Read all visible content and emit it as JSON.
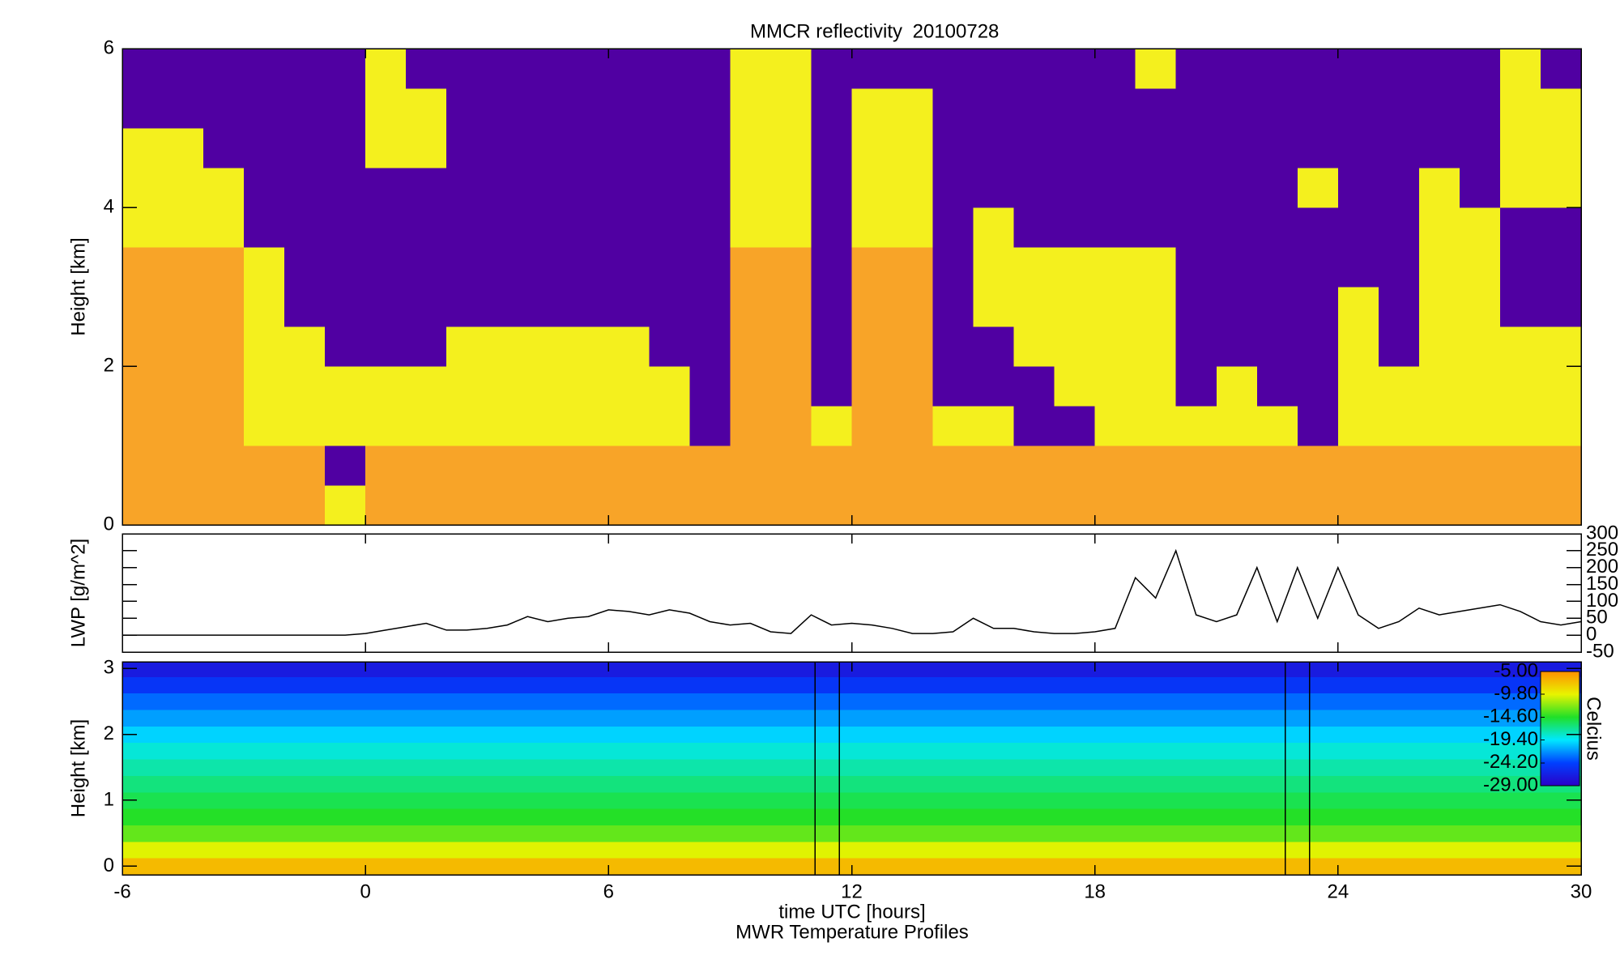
{
  "chart_data": [
    {
      "type": "heatmap",
      "title": "MMCR reflectivity",
      "date": "20100728",
      "ylabel": "Height [km]",
      "ylim": [
        0,
        6
      ],
      "yticks": [
        0,
        2,
        4,
        6
      ],
      "xbins": [
        -6,
        -5,
        -4,
        -3,
        -2,
        -1,
        0,
        1,
        2,
        3,
        4,
        5,
        6,
        7,
        8,
        9,
        10,
        11,
        12,
        13,
        14,
        15,
        16,
        17,
        18,
        19,
        20,
        21,
        22,
        23,
        24,
        25,
        26,
        27,
        28,
        29,
        30
      ],
      "ybins": [
        0,
        0.5,
        1,
        1.5,
        2,
        2.5,
        3,
        3.5,
        4,
        4.5,
        5,
        5.5,
        6
      ],
      "colors": [
        "#5000a2",
        "#f4f01e",
        "#f8a428"
      ],
      "values": [
        [
          2,
          2,
          2,
          2,
          2,
          1,
          2,
          2,
          2,
          2,
          2,
          2,
          2,
          2,
          2,
          2,
          2,
          2,
          2,
          2,
          2,
          2,
          2,
          2,
          2,
          2,
          2,
          2,
          2,
          2,
          2,
          2,
          2,
          2,
          2,
          2
        ],
        [
          2,
          2,
          2,
          2,
          2,
          0,
          2,
          2,
          2,
          2,
          2,
          2,
          2,
          2,
          2,
          2,
          2,
          2,
          2,
          2,
          2,
          2,
          2,
          2,
          2,
          2,
          2,
          2,
          2,
          2,
          2,
          2,
          2,
          2,
          2,
          2
        ],
        [
          2,
          2,
          2,
          1,
          1,
          1,
          1,
          1,
          1,
          1,
          1,
          1,
          1,
          1,
          0,
          2,
          2,
          1,
          2,
          2,
          1,
          1,
          0,
          0,
          1,
          1,
          1,
          1,
          1,
          0,
          1,
          1,
          1,
          1,
          1,
          1
        ],
        [
          2,
          2,
          2,
          1,
          1,
          1,
          1,
          1,
          1,
          1,
          1,
          1,
          1,
          1,
          0,
          2,
          2,
          0,
          2,
          2,
          0,
          0,
          0,
          1,
          1,
          1,
          0,
          1,
          0,
          0,
          1,
          1,
          1,
          1,
          1,
          1
        ],
        [
          2,
          2,
          2,
          1,
          1,
          0,
          0,
          0,
          1,
          1,
          1,
          1,
          1,
          0,
          0,
          2,
          2,
          0,
          2,
          2,
          0,
          0,
          1,
          1,
          1,
          1,
          0,
          0,
          0,
          0,
          1,
          0,
          1,
          1,
          1,
          1
        ],
        [
          2,
          2,
          2,
          1,
          0,
          0,
          0,
          0,
          0,
          0,
          0,
          0,
          0,
          0,
          0,
          2,
          2,
          0,
          2,
          2,
          0,
          1,
          1,
          1,
          1,
          1,
          0,
          0,
          0,
          0,
          1,
          0,
          1,
          1,
          0,
          0
        ],
        [
          2,
          2,
          2,
          1,
          0,
          0,
          0,
          0,
          0,
          0,
          0,
          0,
          0,
          0,
          0,
          2,
          2,
          0,
          2,
          2,
          0,
          1,
          1,
          1,
          1,
          1,
          0,
          0,
          0,
          0,
          0,
          0,
          1,
          1,
          0,
          0
        ],
        [
          1,
          1,
          1,
          0,
          0,
          0,
          0,
          0,
          0,
          0,
          0,
          0,
          0,
          0,
          0,
          1,
          1,
          0,
          1,
          1,
          0,
          1,
          0,
          0,
          0,
          0,
          0,
          0,
          0,
          0,
          0,
          0,
          1,
          1,
          0,
          0
        ],
        [
          1,
          1,
          1,
          0,
          0,
          0,
          0,
          0,
          0,
          0,
          0,
          0,
          0,
          0,
          0,
          1,
          1,
          0,
          1,
          1,
          0,
          0,
          0,
          0,
          0,
          0,
          0,
          0,
          0,
          1,
          0,
          0,
          1,
          0,
          1,
          1
        ],
        [
          1,
          1,
          0,
          0,
          0,
          0,
          1,
          1,
          0,
          0,
          0,
          0,
          0,
          0,
          0,
          1,
          1,
          0,
          1,
          1,
          0,
          0,
          0,
          0,
          0,
          0,
          0,
          0,
          0,
          0,
          0,
          0,
          0,
          0,
          1,
          1
        ],
        [
          0,
          0,
          0,
          0,
          0,
          0,
          1,
          1,
          0,
          0,
          0,
          0,
          0,
          0,
          0,
          1,
          1,
          0,
          1,
          1,
          0,
          0,
          0,
          0,
          0,
          0,
          0,
          0,
          0,
          0,
          0,
          0,
          0,
          0,
          1,
          1
        ],
        [
          0,
          0,
          0,
          0,
          0,
          0,
          1,
          0,
          0,
          0,
          0,
          0,
          0,
          0,
          0,
          1,
          1,
          0,
          0,
          0,
          0,
          0,
          0,
          0,
          0,
          1,
          0,
          0,
          0,
          0,
          0,
          0,
          0,
          0,
          1,
          0
        ]
      ]
    },
    {
      "type": "line",
      "ylabel": "LWP [g/m^2]",
      "ylim": [
        -50,
        300
      ],
      "yticks": [
        -50,
        0,
        50,
        100,
        150,
        200,
        250,
        300
      ],
      "ytick_side": "right",
      "color": "#000000",
      "x": [
        -6,
        -5.5,
        -5,
        -4.5,
        -4,
        -3.5,
        -3,
        -2.5,
        -2,
        -1.5,
        -1,
        -0.5,
        0,
        0.5,
        1,
        1.5,
        2,
        2.5,
        3,
        3.5,
        4,
        4.5,
        5,
        5.5,
        6,
        6.5,
        7,
        7.5,
        8,
        8.5,
        9,
        9.5,
        10,
        10.5,
        11,
        11.5,
        12,
        12.5,
        13,
        13.5,
        14,
        14.5,
        15,
        15.5,
        16,
        16.5,
        17,
        17.5,
        18,
        18.5,
        19,
        19.5,
        20,
        20.5,
        21,
        21.5,
        22,
        22.5,
        23,
        23.5,
        24,
        24.5,
        25,
        25.5,
        26,
        26.5,
        27,
        27.5,
        28,
        28.5,
        29,
        29.5,
        30
      ],
      "values": [
        0,
        0,
        0,
        0,
        0,
        0,
        0,
        0,
        0,
        0,
        0,
        0,
        5,
        15,
        25,
        35,
        15,
        15,
        20,
        30,
        55,
        40,
        50,
        55,
        75,
        70,
        60,
        75,
        65,
        40,
        30,
        35,
        10,
        5,
        60,
        30,
        35,
        30,
        20,
        5,
        5,
        10,
        50,
        20,
        20,
        10,
        5,
        5,
        10,
        20,
        170,
        110,
        250,
        60,
        40,
        60,
        200,
        40,
        200,
        50,
        200,
        60,
        20,
        40,
        80,
        60,
        70,
        80,
        90,
        70,
        40,
        30,
        40
      ]
    },
    {
      "type": "profile",
      "ylabel": "Height [km]",
      "ylim": [
        -0.13,
        3.1
      ],
      "yticks": [
        0,
        1,
        2,
        3
      ],
      "xlim": [
        -6,
        30
      ],
      "xticks": [
        -6,
        0,
        6,
        12,
        18,
        24,
        30
      ],
      "xlabel": "time UTC [hours]",
      "caption": "MWR Temperature Profiles",
      "heights": [
        0,
        0.25,
        0.5,
        0.75,
        1,
        1.25,
        1.5,
        1.75,
        2,
        2.25,
        2.5,
        2.75,
        3
      ],
      "values": [
        -7,
        -10,
        -13,
        -14.5,
        -15.5,
        -16.5,
        -17.5,
        -18.5,
        -20,
        -21.5,
        -23,
        -25,
        -27
      ],
      "gap_lines": [
        11.1,
        11.7,
        22.7,
        23.3
      ],
      "colorbar": {
        "label": "Celcius",
        "clim": [
          -29,
          -5
        ],
        "ticks": [
          {
            "value": -5,
            "label": "-5.00"
          },
          {
            "value": -9.8,
            "label": "-9.80"
          },
          {
            "value": -14.6,
            "label": "-14.60"
          },
          {
            "value": -19.4,
            "label": "-19.40"
          },
          {
            "value": -24.2,
            "label": "-24.20"
          },
          {
            "value": -29,
            "label": "-29.00"
          }
        ],
        "colormap": [
          "#2a00c8",
          "#0040ff",
          "#00e8ff",
          "#20e028",
          "#e8f400",
          "#ff9000"
        ]
      }
    }
  ]
}
